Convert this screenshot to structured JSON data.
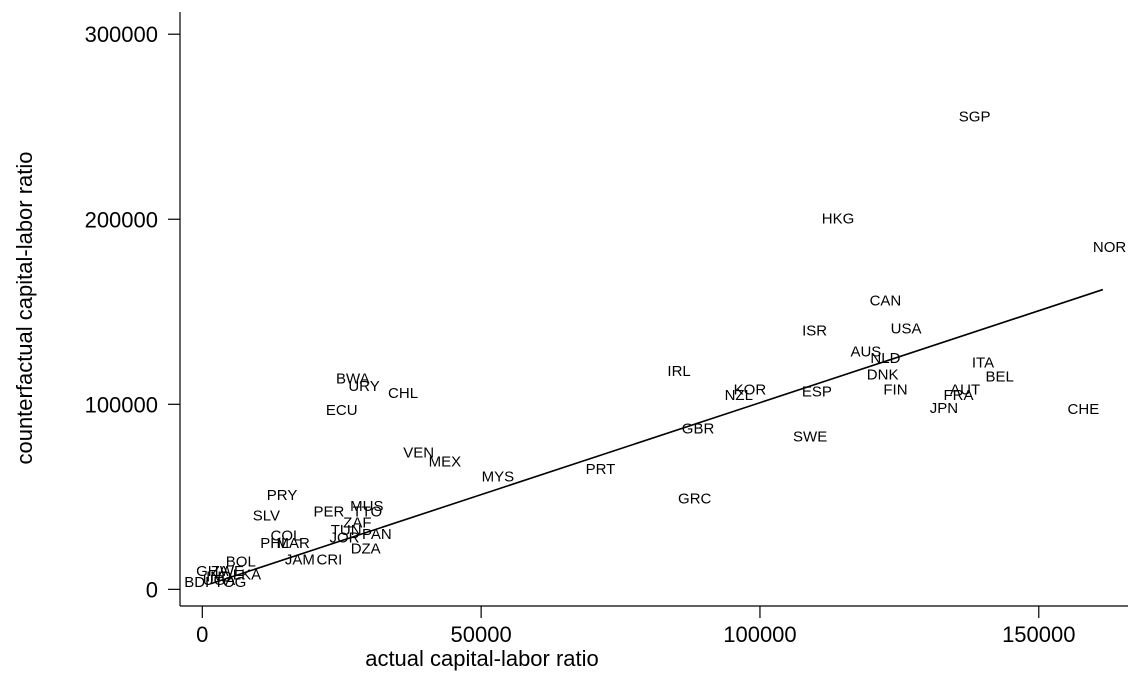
{
  "chart_data": {
    "type": "scatter",
    "xlabel": "actual capital-labor ratio",
    "ylabel": "counterfactual capital-labor ratio",
    "xlim": [
      -4000,
      166000
    ],
    "ylim": [
      -9000,
      312000
    ],
    "x_ticks": [
      0,
      50000,
      100000,
      150000
    ],
    "x_tick_labels": [
      "0",
      "50000",
      "100000",
      "150000"
    ],
    "y_ticks": [
      0,
      100000,
      200000,
      300000
    ],
    "y_tick_labels": [
      "0",
      "100000",
      "200000",
      "300000"
    ],
    "grid": false,
    "fit_line": {
      "x": [
        1500,
        161500
      ],
      "y": [
        3000,
        162000
      ]
    },
    "points": [
      {
        "label": "SGP",
        "x": 138500,
        "y": 255500
      },
      {
        "label": "HKG",
        "x": 114000,
        "y": 200500
      },
      {
        "label": "NOR",
        "x": 162700,
        "y": 185000
      },
      {
        "label": "CAN",
        "x": 122500,
        "y": 156000
      },
      {
        "label": "ISR",
        "x": 109800,
        "y": 140000
      },
      {
        "label": "USA",
        "x": 126200,
        "y": 141000
      },
      {
        "label": "AUS",
        "x": 119000,
        "y": 128500
      },
      {
        "label": "NLD",
        "x": 122500,
        "y": 125000
      },
      {
        "label": "ITA",
        "x": 140000,
        "y": 122500
      },
      {
        "label": "DNK",
        "x": 122000,
        "y": 116000
      },
      {
        "label": "BEL",
        "x": 143000,
        "y": 115000
      },
      {
        "label": "IRL",
        "x": 85500,
        "y": 118000
      },
      {
        "label": "FIN",
        "x": 124300,
        "y": 108000
      },
      {
        "label": "AUT",
        "x": 136800,
        "y": 108000
      },
      {
        "label": "FRA",
        "x": 135600,
        "y": 105000
      },
      {
        "label": "KOR",
        "x": 98200,
        "y": 108000
      },
      {
        "label": "ESP",
        "x": 110200,
        "y": 107000
      },
      {
        "label": "NZL",
        "x": 96200,
        "y": 105000
      },
      {
        "label": "JPN",
        "x": 133000,
        "y": 98000
      },
      {
        "label": "CHE",
        "x": 158000,
        "y": 97500
      },
      {
        "label": "SWE",
        "x": 109000,
        "y": 82500
      },
      {
        "label": "GBR",
        "x": 88900,
        "y": 87000
      },
      {
        "label": "GRC",
        "x": 88300,
        "y": 49000
      },
      {
        "label": "PRT",
        "x": 71400,
        "y": 65000
      },
      {
        "label": "MYS",
        "x": 53000,
        "y": 61000
      },
      {
        "label": "VEN",
        "x": 38800,
        "y": 74000
      },
      {
        "label": "MEX",
        "x": 43500,
        "y": 69000
      },
      {
        "label": "BWA",
        "x": 27000,
        "y": 114000
      },
      {
        "label": "URY",
        "x": 29000,
        "y": 110000
      },
      {
        "label": "CHL",
        "x": 36000,
        "y": 106000
      },
      {
        "label": "ECU",
        "x": 25000,
        "y": 97000
      },
      {
        "label": "PRY",
        "x": 14300,
        "y": 51000
      },
      {
        "label": "MUS",
        "x": 29500,
        "y": 45000
      },
      {
        "label": "PER",
        "x": 22700,
        "y": 42000
      },
      {
        "label": "TTO",
        "x": 29600,
        "y": 42000
      },
      {
        "label": "SLV",
        "x": 11500,
        "y": 40000
      },
      {
        "label": "ZAF",
        "x": 27800,
        "y": 36000
      },
      {
        "label": "TUN",
        "x": 25800,
        "y": 32000
      },
      {
        "label": "PAN",
        "x": 31300,
        "y": 30000
      },
      {
        "label": "COL",
        "x": 15000,
        "y": 29000
      },
      {
        "label": "JOR",
        "x": 25500,
        "y": 28000
      },
      {
        "label": "PHL",
        "x": 13000,
        "y": 25000
      },
      {
        "label": "MAR",
        "x": 16300,
        "y": 25000
      },
      {
        "label": "DZA",
        "x": 29300,
        "y": 22000
      },
      {
        "label": "JAM",
        "x": 17500,
        "y": 16000
      },
      {
        "label": "CRI",
        "x": 22800,
        "y": 16000
      },
      {
        "label": "BOL",
        "x": 6900,
        "y": 15000
      },
      {
        "label": "GHA",
        "x": 1800,
        "y": 10000
      },
      {
        "label": "ZWE",
        "x": 4500,
        "y": 10000
      },
      {
        "label": "IND",
        "x": 3000,
        "y": 7000
      },
      {
        "label": "LKA",
        "x": 8000,
        "y": 8000
      },
      {
        "label": "UGA",
        "x": 3000,
        "y": 5000
      },
      {
        "label": "BDI",
        "x": -1000,
        "y": 4000
      },
      {
        "label": "TOG",
        "x": 5000,
        "y": 4000
      }
    ]
  }
}
